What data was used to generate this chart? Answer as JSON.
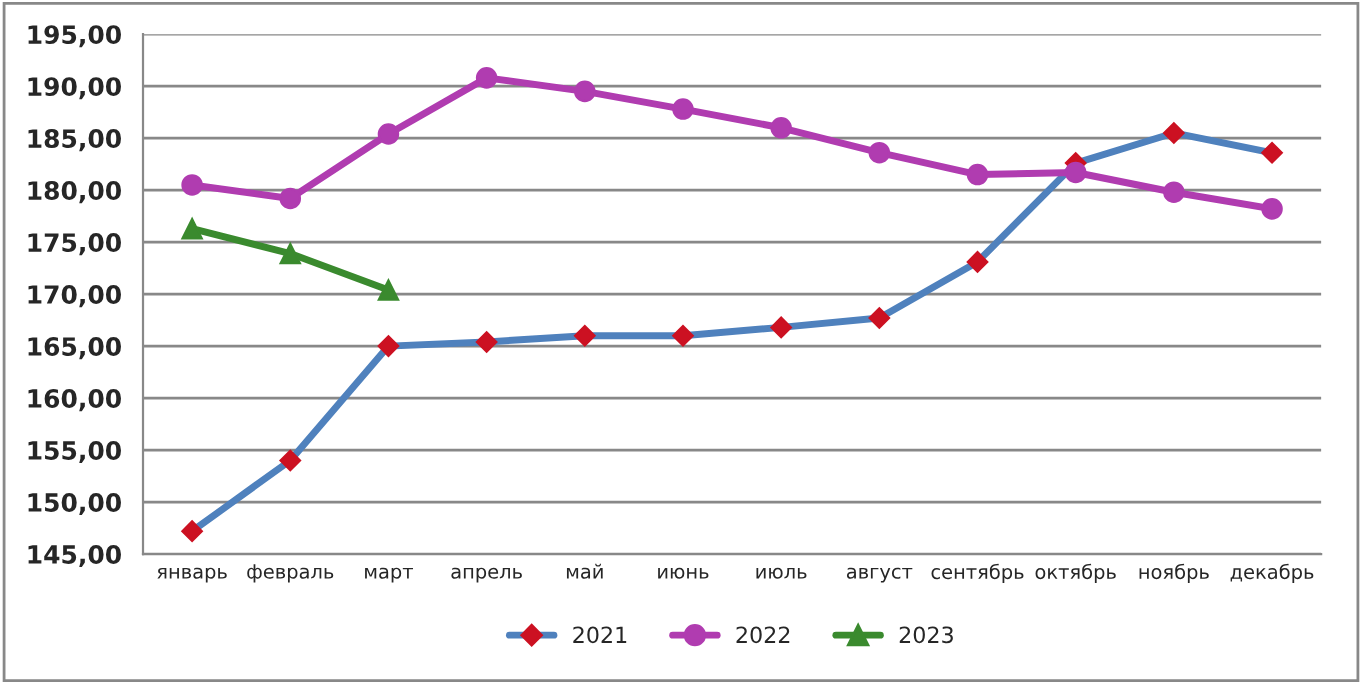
{
  "chart_data": {
    "type": "line",
    "categories": [
      "январь",
      "февраль",
      "март",
      "апрель",
      "май",
      "июнь",
      "июль",
      "август",
      "сентябрь",
      "октябрь",
      "ноябрь",
      "декабрь"
    ],
    "series": [
      {
        "name": "2021",
        "color": "#4f81bd",
        "marker": "diamond",
        "values": [
          147.2,
          154.0,
          165.0,
          165.4,
          166.0,
          166.0,
          166.8,
          167.7,
          173.1,
          182.6,
          185.5,
          183.6
        ]
      },
      {
        "name": "2022",
        "color": "#b03cb0",
        "marker": "circle",
        "values": [
          180.5,
          179.2,
          185.4,
          190.8,
          189.5,
          187.8,
          186.0,
          183.6,
          181.5,
          181.7,
          179.8,
          178.2
        ]
      },
      {
        "name": "2023",
        "color": "#3a8a2e",
        "marker": "triangle",
        "values": [
          176.3,
          173.9,
          170.4,
          null,
          null,
          null,
          null,
          null,
          null,
          null,
          null,
          null
        ]
      }
    ],
    "ylim": [
      145,
      195
    ],
    "yticks": [
      {
        "value": 145,
        "label": "145,00"
      },
      {
        "value": 150,
        "label": "150,00"
      },
      {
        "value": 155,
        "label": "155,00"
      },
      {
        "value": 160,
        "label": "160,00"
      },
      {
        "value": 165,
        "label": "165,00"
      },
      {
        "value": 170,
        "label": "170,00"
      },
      {
        "value": 175,
        "label": "175,00"
      },
      {
        "value": 180,
        "label": "180,00"
      },
      {
        "value": 185,
        "label": "185,00"
      },
      {
        "value": 190,
        "label": "190,00"
      },
      {
        "value": 195,
        "label": "195,00"
      }
    ],
    "grid": "y",
    "legend": "bottom",
    "line_style": "solid"
  }
}
